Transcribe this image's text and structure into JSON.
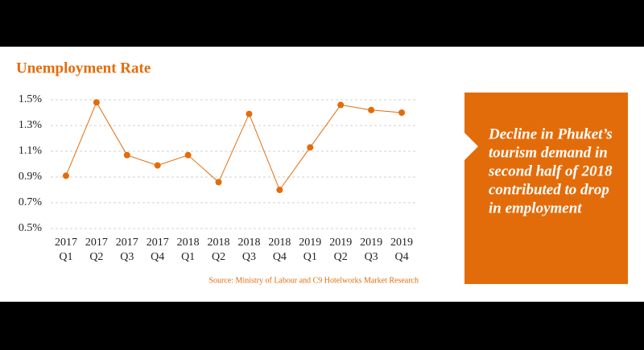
{
  "chart_data": {
    "type": "line",
    "title": "Unemployment Rate",
    "categories": [
      [
        "2017",
        "Q1"
      ],
      [
        "2017",
        "Q2"
      ],
      [
        "2017",
        "Q3"
      ],
      [
        "2017",
        "Q4"
      ],
      [
        "2018",
        "Q1"
      ],
      [
        "2018",
        "Q2"
      ],
      [
        "2018",
        "Q3"
      ],
      [
        "2018",
        "Q4"
      ],
      [
        "2019",
        "Q1"
      ],
      [
        "2019",
        "Q2"
      ],
      [
        "2019",
        "Q3"
      ],
      [
        "2019",
        "Q4"
      ]
    ],
    "values": [
      0.91,
      1.48,
      1.07,
      0.99,
      1.07,
      0.86,
      1.39,
      0.8,
      1.13,
      1.46,
      1.42,
      1.4
    ],
    "color": "#e36c0a",
    "ylim": [
      0.5,
      1.5
    ],
    "yticks": [
      {
        "value": 0.5,
        "label": "0.5%"
      },
      {
        "value": 0.7,
        "label": "0.7%"
      },
      {
        "value": 0.9,
        "label": "0.9%"
      },
      {
        "value": 1.1,
        "label": "1.1%"
      },
      {
        "value": 1.3,
        "label": "1.3%"
      },
      {
        "value": 1.5,
        "label": "1.5%"
      }
    ],
    "grid": true,
    "source": "Source: Ministry of Labour and C9 Hotelworks Market Research",
    "annotation": [
      "Decline in Phuket’s",
      "tourism demand in",
      "second half of 2018",
      "contributed to drop",
      "in employment"
    ]
  }
}
